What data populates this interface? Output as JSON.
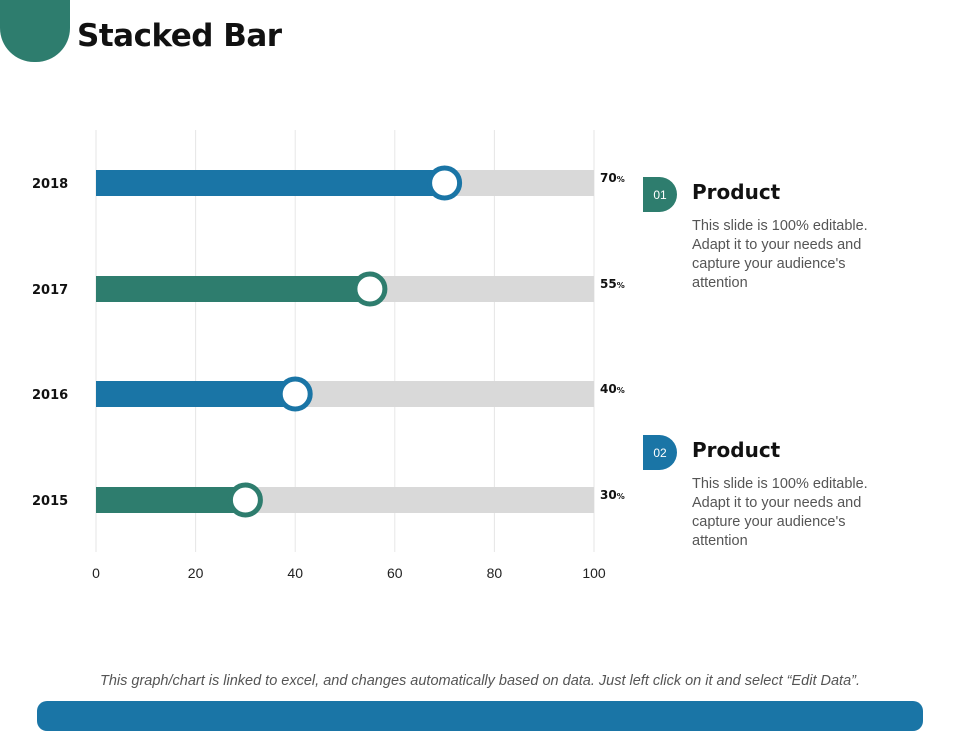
{
  "page": {
    "title": "Stacked Bar",
    "footnote": "This graph/chart is linked to excel, and changes automatically based on data. Just left click on it and select “Edit Data”."
  },
  "colors": {
    "blue": "#1a75a6",
    "green": "#2e7d6e",
    "track": "#d9d9d9",
    "knob_fill": "#ffffff"
  },
  "chart_data": {
    "type": "bar",
    "orientation": "horizontal",
    "title": "",
    "xlabel": "",
    "ylabel": "",
    "xlim": [
      0,
      100
    ],
    "x_ticks": [
      0,
      20,
      40,
      60,
      80,
      100
    ],
    "grid": true,
    "categories": [
      "2018",
      "2017",
      "2016",
      "2015"
    ],
    "series": [
      {
        "name": "Value",
        "values": [
          70,
          55,
          40,
          30
        ],
        "colors": [
          "#1a75a6",
          "#2e7d6e",
          "#1a75a6",
          "#2e7d6e"
        ]
      },
      {
        "name": "Remainder",
        "values": [
          30,
          45,
          60,
          70
        ],
        "color": "#d9d9d9"
      }
    ],
    "data_labels": [
      "70",
      "55",
      "40",
      "30"
    ],
    "data_label_suffix": "%"
  },
  "legend": [
    {
      "badge": "01",
      "color": "#2e7d6e",
      "title": "Product",
      "description": "This slide is 100% editable. Adapt it to your needs and capture your audience's attention"
    },
    {
      "badge": "02",
      "color": "#1a75a6",
      "title": "Product",
      "description": "This slide is 100% editable. Adapt it to your needs and capture your audience's attention"
    }
  ]
}
